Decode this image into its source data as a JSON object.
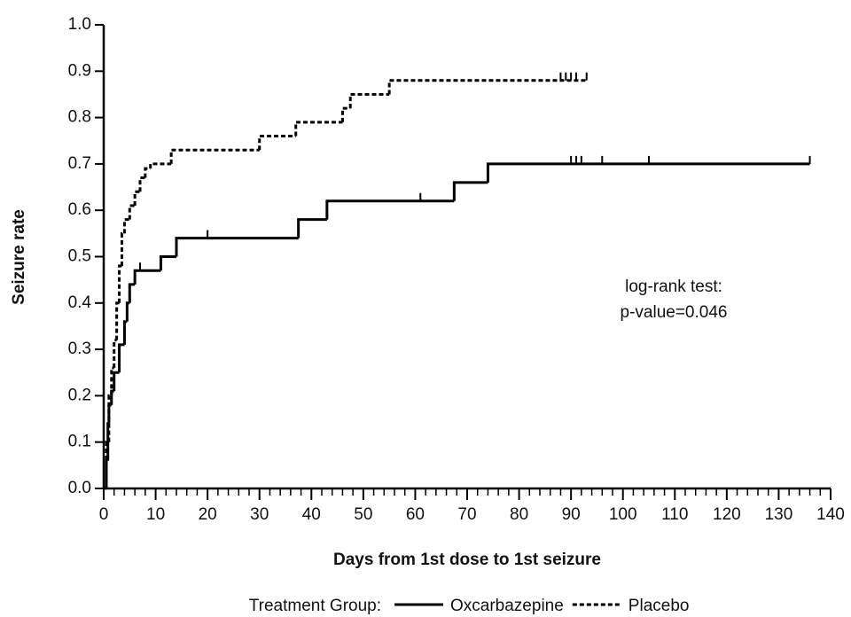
{
  "chart_data": {
    "type": "step",
    "xlabel": "Days from 1st dose to 1st seizure",
    "ylabel": "Seizure rate",
    "xlim": [
      0,
      140
    ],
    "ylim": [
      0,
      1
    ],
    "xticks": [
      0,
      10,
      20,
      30,
      40,
      50,
      60,
      70,
      80,
      90,
      100,
      110,
      120,
      130,
      140
    ],
    "yticks": [
      {
        "value": 0,
        "label": "0.0"
      },
      0.1,
      0.2,
      0.3,
      0.4,
      0.5,
      0.6,
      0.7,
      0.8,
      0.9,
      {
        "value": 1,
        "label": "1.0"
      }
    ],
    "annotation": [
      "log-rank test:",
      "p-value=0.046"
    ],
    "legend_title": "Treatment Group:",
    "series": [
      {
        "name": "Oxcarbazepine",
        "color": "#000000",
        "dash": "solid",
        "x": [
          0,
          0.5,
          0.8,
          1,
          1.5,
          2,
          3,
          4,
          4.5,
          5,
          6,
          11,
          14,
          37.5,
          43,
          67.5,
          74,
          136
        ],
        "values": [
          0,
          0.06,
          0.14,
          0.18,
          0.21,
          0.25,
          0.31,
          0.36,
          0.4,
          0.44,
          0.47,
          0.5,
          0.54,
          0.58,
          0.62,
          0.66,
          0.7,
          0.7
        ],
        "censor_x": [
          7,
          20,
          61,
          90,
          91,
          92,
          96,
          105,
          136
        ],
        "censor_values": [
          0.47,
          0.54,
          0.62,
          0.7,
          0.7,
          0.7,
          0.7,
          0.7,
          0.7
        ]
      },
      {
        "name": "Placebo",
        "color": "#000000",
        "dash": "dotted",
        "x": [
          0,
          0.5,
          1,
          1.5,
          2,
          2.5,
          3,
          3.5,
          4,
          5,
          6,
          7,
          8,
          9,
          13,
          30,
          37,
          46,
          47.5,
          55,
          93
        ],
        "values": [
          0,
          0.1,
          0.2,
          0.26,
          0.32,
          0.4,
          0.48,
          0.55,
          0.58,
          0.61,
          0.64,
          0.67,
          0.69,
          0.7,
          0.73,
          0.76,
          0.79,
          0.82,
          0.85,
          0.88,
          0.88
        ],
        "censor_x": [
          88,
          89,
          90,
          91,
          93
        ],
        "censor_values": [
          0.88,
          0.88,
          0.88,
          0.88,
          0.88
        ]
      }
    ]
  }
}
